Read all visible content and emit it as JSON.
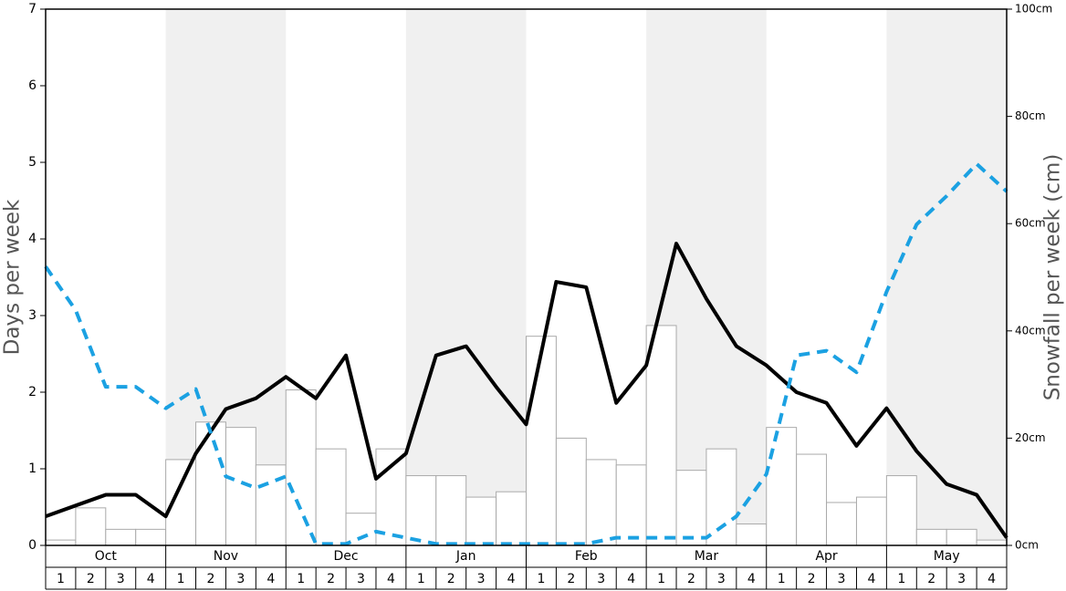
{
  "chart_data": {
    "type": "combo",
    "ylabel": "Days per week",
    "y2label": "Snowfall per week (cm)",
    "months": [
      "Oct",
      "Nov",
      "Dec",
      "Jan",
      "Feb",
      "Mar",
      "Apr",
      "May"
    ],
    "weeks": [
      "1",
      "2",
      "3",
      "4"
    ],
    "ylim": [
      0,
      7
    ],
    "yticks": [
      0,
      1,
      2,
      3,
      4,
      5,
      6,
      7
    ],
    "y2lim": [
      0,
      100
    ],
    "y2ticks": [
      {
        "value": 0,
        "label": "0cm"
      },
      {
        "value": 20,
        "label": "20cm"
      },
      {
        "value": 40,
        "label": "40cm"
      },
      {
        "value": 60,
        "label": "60cm"
      },
      {
        "value": 80,
        "label": "80cm"
      },
      {
        "value": 100,
        "label": "100cm"
      }
    ],
    "series": [
      {
        "type": "bar",
        "axis": "y2",
        "color": "#ffffff",
        "edge": "#aaaaaa",
        "values": [
          1,
          7,
          3,
          3,
          16,
          23,
          22,
          15,
          29,
          18,
          6,
          18,
          13,
          13,
          9,
          10,
          39,
          20,
          16,
          15,
          41,
          14,
          18,
          4,
          22,
          17,
          8,
          9,
          13,
          3,
          3,
          1
        ]
      },
      {
        "type": "line",
        "axis": "y",
        "color": "#000000",
        "dash": false,
        "values": [
          0.38,
          0.52,
          0.66,
          0.66,
          0.38,
          1.2,
          1.78,
          1.92,
          2.2,
          1.92,
          2.48,
          0.87,
          1.2,
          2.48,
          2.6,
          2.07,
          1.58,
          3.44,
          3.37,
          1.86,
          2.35,
          3.94,
          3.22,
          2.6,
          2.35,
          2.0,
          1.86,
          1.3,
          1.79,
          1.23,
          0.8,
          0.66,
          0.1
        ]
      },
      {
        "type": "line",
        "axis": "y",
        "color": "#1ba1e2",
        "dash": true,
        "values": [
          3.64,
          3.07,
          2.07,
          2.07,
          1.79,
          2.04,
          0.9,
          0.75,
          0.9,
          0.02,
          0.02,
          0.18,
          0.1,
          0.02,
          0.02,
          0.02,
          0.02,
          0.02,
          0.02,
          0.1,
          0.1,
          0.1,
          0.1,
          0.38,
          0.93,
          2.48,
          2.54,
          2.26,
          3.31,
          4.19,
          4.56,
          4.98,
          4.62
        ]
      }
    ]
  }
}
